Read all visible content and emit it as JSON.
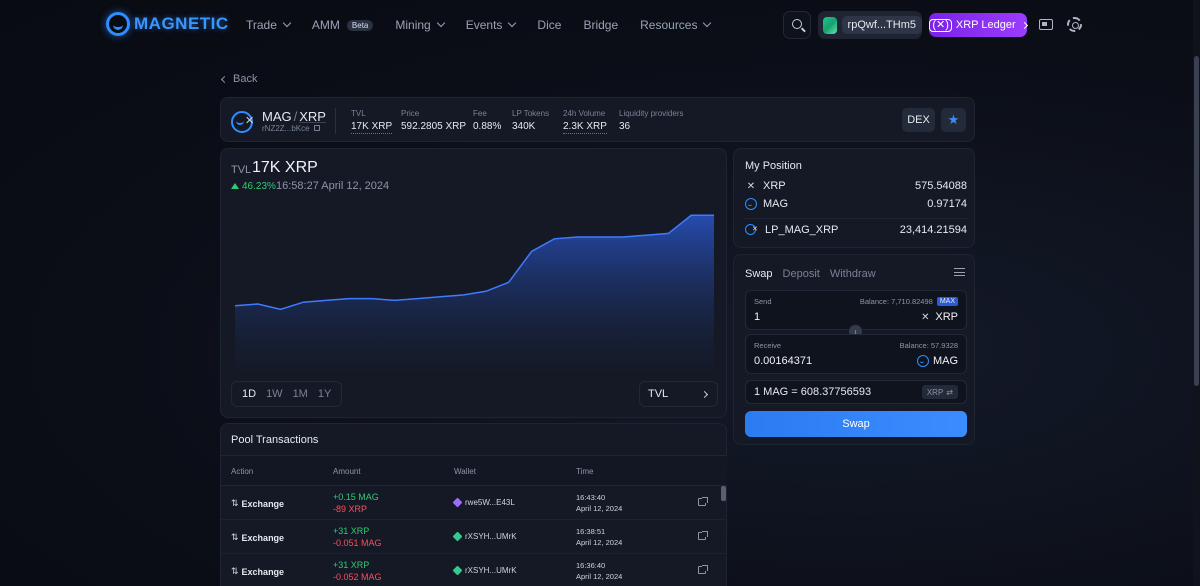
{
  "brand": {
    "name": "MAGNETIC"
  },
  "nav": {
    "items": [
      {
        "label": "Trade",
        "dropdown": true
      },
      {
        "label": "AMM",
        "badge": "Beta"
      },
      {
        "label": "Mining",
        "dropdown": true
      },
      {
        "label": "Events",
        "dropdown": true
      },
      {
        "label": "Dice"
      },
      {
        "label": "Bridge"
      },
      {
        "label": "Resources",
        "dropdown": true
      }
    ],
    "wallet_address": "rpQwf...THm5",
    "network": "XRP Ledger",
    "network_icon": "(✕)"
  },
  "back_label": "Back",
  "pool": {
    "base": "MAG",
    "separator": "/",
    "quote": "XRP",
    "issuer": "rNZ2Z...bKce",
    "stats": [
      {
        "label": "TVL",
        "value": "17K XRP",
        "dotted": true
      },
      {
        "label": "Price",
        "value": "592.2805 XRP",
        "dotted": false
      },
      {
        "label": "Fee",
        "value": "0.88%",
        "dotted": false
      },
      {
        "label": "LP Tokens",
        "value": "340K",
        "dotted": false
      },
      {
        "label": "24h Volume",
        "value": "2.3K XRP",
        "dotted": true
      },
      {
        "label": "Liquidity providers",
        "value": "36",
        "dotted": false
      }
    ],
    "dex_label": "DEX",
    "star_icon": "★"
  },
  "chart": {
    "label": "TVL",
    "value": "17K XRP",
    "change": "46.23%",
    "timestamp": "16:58:27 April 12, 2024",
    "ranges": [
      "1D",
      "1W",
      "1M",
      "1Y"
    ],
    "active_range": "1D",
    "metric": "TVL"
  },
  "chart_data": {
    "type": "area",
    "title": "",
    "xlabel": "",
    "ylabel": "",
    "series": [
      {
        "values": [
          11.6,
          11.7,
          11.4,
          11.8,
          11.9,
          12.0,
          12.0,
          11.9,
          12.0,
          12.1,
          12.2,
          12.4,
          12.9,
          14.6,
          15.3,
          15.4,
          15.4,
          15.4,
          15.5,
          15.6,
          16.6,
          16.6
        ]
      }
    ],
    "ylim": [
      8,
      17.5
    ],
    "grid": false,
    "legend": "none"
  },
  "position": {
    "title": "My Position",
    "rows": [
      {
        "token": "XRP",
        "icon": "xrp-icon",
        "value": "575.54088"
      },
      {
        "token": "MAG",
        "icon": "mag-icon",
        "value": "0.97174"
      },
      {
        "token": "LP_MAG_XRP",
        "icon": "lp-icon",
        "value": "23,414.21594"
      }
    ]
  },
  "swap": {
    "tabs": [
      "Swap",
      "Deposit",
      "Withdraw"
    ],
    "active_tab": "Swap",
    "send_label": "Send",
    "send_balance": "Balance: 7,710.82498",
    "max_label": "MAX",
    "send_value": "1",
    "send_token": "XRP",
    "receive_label": "Receive",
    "receive_balance": "Balance: 57.9328",
    "receive_value": "0.00164371",
    "receive_token": "MAG",
    "rate": "1 MAG = 608.37756593",
    "rate_unit": "XRP",
    "button": "Swap"
  },
  "transactions": {
    "title": "Pool Transactions",
    "columns": [
      "Action",
      "Amount",
      "Wallet",
      "Time"
    ],
    "rows": [
      {
        "action": "Exchange",
        "amount_in": "+0.15 MAG",
        "amount_out": "-89 XRP",
        "wallet": "rwe5W...E43L",
        "wallet_color": "#9b6cff",
        "time": "16:43:40",
        "date": "April 12, 2024"
      },
      {
        "action": "Exchange",
        "amount_in": "+31 XRP",
        "amount_out": "-0.051 MAG",
        "wallet": "rXSYH...UMrK",
        "wallet_color": "#2ecc8f",
        "time": "16:38:51",
        "date": "April 12, 2024"
      },
      {
        "action": "Exchange",
        "amount_in": "+31 XRP",
        "amount_out": "-0.052 MAG",
        "wallet": "rXSYH...UMrK",
        "wallet_color": "#2ecc8f",
        "time": "16:36:40",
        "date": "April 12, 2024"
      }
    ]
  }
}
